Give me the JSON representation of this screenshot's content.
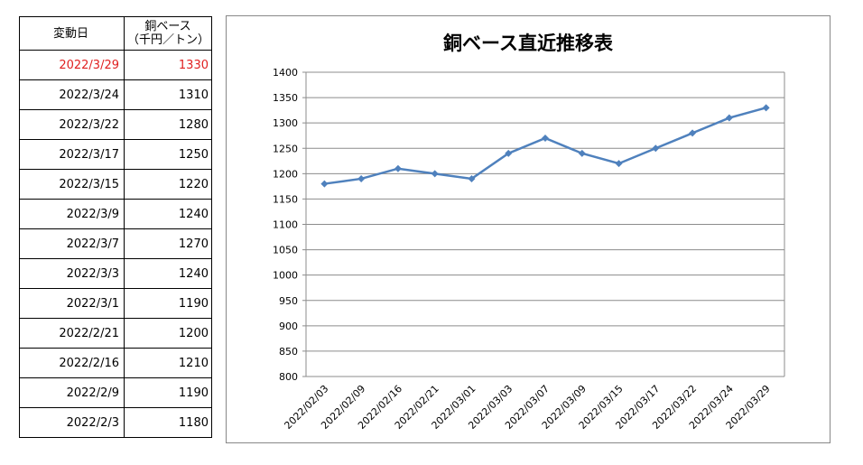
{
  "table": {
    "headers": [
      "変動日",
      "銅ベース",
      "（千円／トン）"
    ],
    "rows": [
      {
        "date": "2022/3/29",
        "value": "1330",
        "highlight": true
      },
      {
        "date": "2022/3/24",
        "value": "1310",
        "highlight": false
      },
      {
        "date": "2022/3/22",
        "value": "1280",
        "highlight": false
      },
      {
        "date": "2022/3/17",
        "value": "1250",
        "highlight": false
      },
      {
        "date": "2022/3/15",
        "value": "1220",
        "highlight": false
      },
      {
        "date": "2022/3/9",
        "value": "1240",
        "highlight": false
      },
      {
        "date": "2022/3/7",
        "value": "1270",
        "highlight": false
      },
      {
        "date": "2022/3/3",
        "value": "1240",
        "highlight": false
      },
      {
        "date": "2022/3/1",
        "value": "1190",
        "highlight": false
      },
      {
        "date": "2022/2/21",
        "value": "1200",
        "highlight": false
      },
      {
        "date": "2022/2/16",
        "value": "1210",
        "highlight": false
      },
      {
        "date": "2022/2/9",
        "value": "1190",
        "highlight": false
      },
      {
        "date": "2022/2/3",
        "value": "1180",
        "highlight": false
      }
    ],
    "highlight_color": "#e02020"
  },
  "chart_data": {
    "type": "line",
    "title": "銅ベース直近推移表",
    "categories": [
      "2022/02/03",
      "2022/02/09",
      "2022/02/16",
      "2022/02/21",
      "2022/03/01",
      "2022/03/03",
      "2022/03/07",
      "2022/03/09",
      "2022/03/15",
      "2022/03/17",
      "2022/03/22",
      "2022/03/24",
      "2022/03/29"
    ],
    "series": [
      {
        "values": [
          1180,
          1190,
          1210,
          1200,
          1190,
          1240,
          1270,
          1240,
          1220,
          1250,
          1280,
          1310,
          1330
        ]
      }
    ],
    "ylim": [
      800,
      1400
    ],
    "yticks": [
      800,
      850,
      900,
      950,
      1000,
      1050,
      1100,
      1150,
      1200,
      1250,
      1300,
      1350,
      1400
    ],
    "grid": true,
    "line_color": "#4f81bd"
  }
}
